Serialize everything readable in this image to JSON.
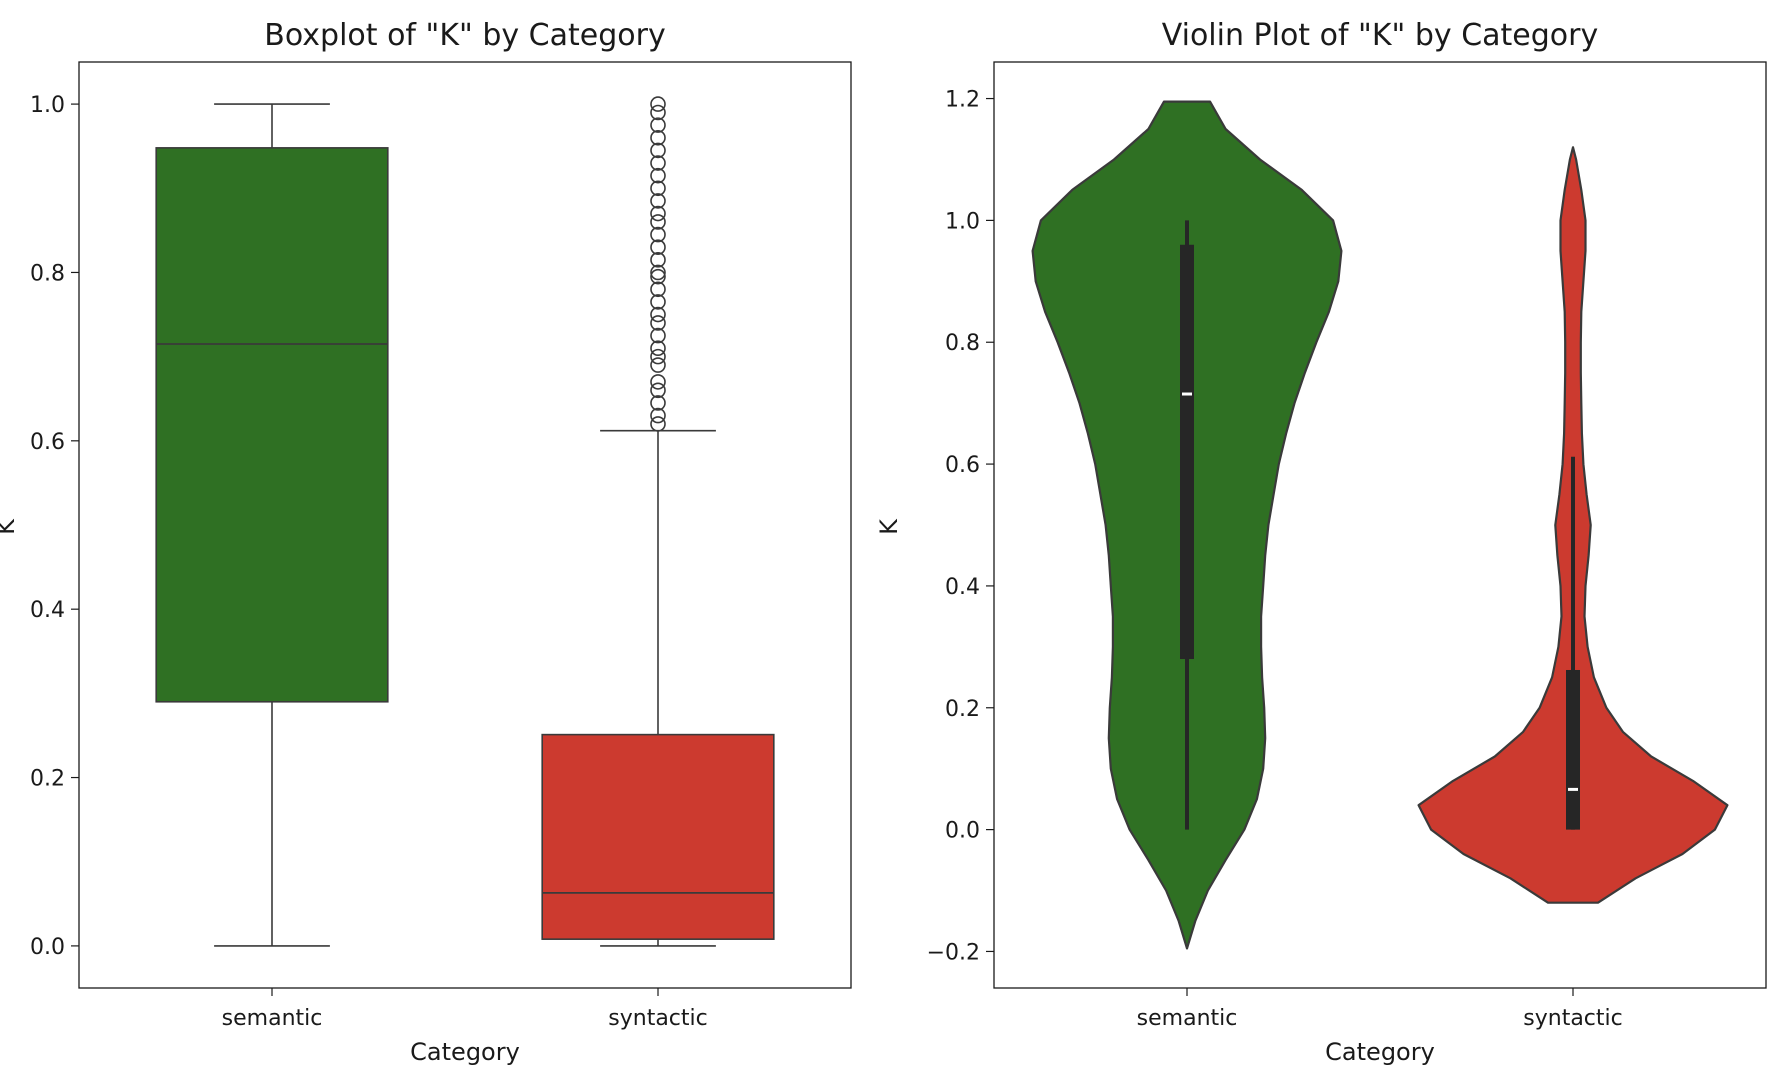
{
  "chart_data": [
    {
      "type": "box",
      "title": "Boxplot of \"K\" by Category",
      "xlabel": "Category",
      "ylabel": "K",
      "categories": [
        "semantic",
        "syntactic"
      ],
      "colors": [
        "#2f7023",
        "#cc3a2f"
      ],
      "ylim": [
        -0.05,
        1.05
      ],
      "yticks": [
        0.0,
        0.2,
        0.4,
        0.6,
        0.8,
        1.0
      ],
      "yticklabels": [
        "0.0",
        "0.2",
        "0.4",
        "0.6",
        "0.8",
        "1.0"
      ],
      "boxes": [
        {
          "category": "semantic",
          "whisker_low": 0.0,
          "q1": 0.29,
          "median": 0.715,
          "q3": 0.948,
          "whisker_high": 1.0,
          "outliers": []
        },
        {
          "category": "syntactic",
          "whisker_low": 0.0,
          "q1": 0.008,
          "median": 0.063,
          "q3": 0.251,
          "whisker_high": 0.612,
          "outliers": [
            0.62,
            0.63,
            0.645,
            0.66,
            0.67,
            0.69,
            0.7,
            0.71,
            0.725,
            0.74,
            0.75,
            0.765,
            0.78,
            0.795,
            0.8,
            0.815,
            0.83,
            0.845,
            0.86,
            0.87,
            0.885,
            0.9,
            0.915,
            0.93,
            0.945,
            0.96,
            0.975,
            0.99,
            1.0
          ]
        }
      ],
      "grid": false,
      "legend": "none"
    },
    {
      "type": "violin",
      "title": "Violin Plot of \"K\" by Category",
      "xlabel": "Category",
      "ylabel": "K",
      "categories": [
        "semantic",
        "syntactic"
      ],
      "colors": [
        "#2f7023",
        "#cc3a2f"
      ],
      "ylim": [
        -0.26,
        1.26
      ],
      "yticks": [
        -0.2,
        0.0,
        0.2,
        0.4,
        0.6,
        0.8,
        1.0,
        1.2
      ],
      "yticklabels": [
        "−0.2",
        "0.0",
        "0.2",
        "0.4",
        "0.6",
        "0.8",
        "1.0",
        "1.2"
      ],
      "violins": [
        {
          "category": "semantic",
          "density_y": [
            -0.195,
            -0.15,
            -0.1,
            -0.05,
            0.0,
            0.05,
            0.1,
            0.15,
            0.2,
            0.25,
            0.3,
            0.35,
            0.4,
            0.45,
            0.5,
            0.55,
            0.6,
            0.65,
            0.7,
            0.75,
            0.8,
            0.85,
            0.9,
            0.95,
            1.0,
            1.05,
            1.1,
            1.15,
            1.195
          ],
          "density_width": [
            0.0,
            0.08,
            0.2,
            0.37,
            0.55,
            0.67,
            0.73,
            0.75,
            0.74,
            0.72,
            0.71,
            0.71,
            0.73,
            0.75,
            0.78,
            0.83,
            0.88,
            0.95,
            1.03,
            1.13,
            1.24,
            1.36,
            1.45,
            1.48,
            1.4,
            1.1,
            0.7,
            0.37,
            0.22
          ],
          "q1": 0.28,
          "median": 0.715,
          "q3": 0.96,
          "whisker_low": 0.0,
          "whisker_high": 1.0
        },
        {
          "category": "syntactic",
          "density_y": [
            -0.12,
            -0.08,
            -0.04,
            0.0,
            0.04,
            0.08,
            0.12,
            0.16,
            0.2,
            0.25,
            0.3,
            0.35,
            0.4,
            0.45,
            0.5,
            0.55,
            0.6,
            0.65,
            0.7,
            0.75,
            0.8,
            0.85,
            0.9,
            0.95,
            1.0,
            1.05,
            1.1,
            1.12
          ],
          "density_width": [
            0.24,
            0.6,
            1.05,
            1.36,
            1.48,
            1.15,
            0.75,
            0.48,
            0.32,
            0.2,
            0.14,
            0.11,
            0.12,
            0.15,
            0.17,
            0.13,
            0.1,
            0.085,
            0.08,
            0.075,
            0.075,
            0.08,
            0.1,
            0.12,
            0.12,
            0.08,
            0.03,
            0.0
          ],
          "q1": 0.0,
          "median": 0.066,
          "q3": 0.262,
          "whisker_low": 0.0,
          "whisker_high": 0.612
        }
      ],
      "grid": false,
      "legend": "none"
    }
  ]
}
